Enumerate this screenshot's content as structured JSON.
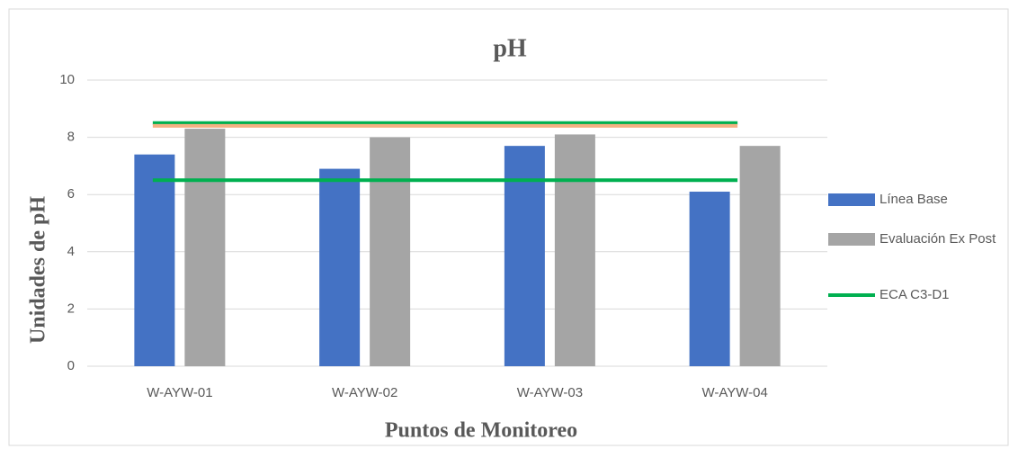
{
  "chart_data": {
    "type": "bar",
    "title": "pH",
    "x_label": "Puntos de Monitoreo",
    "y_label": "Unidades de pH",
    "categories": [
      "W-AYW-01",
      "W-AYW-02",
      "W-AYW-03",
      "W-AYW-04"
    ],
    "series": [
      {
        "name": "Línea Base",
        "color": "#4472c4",
        "kind": "bar",
        "values": [
          7.4,
          6.9,
          7.7,
          6.1
        ]
      },
      {
        "name": "Evaluación Ex Post",
        "color": "#a5a5a5",
        "kind": "bar",
        "values": [
          8.3,
          8.0,
          8.1,
          7.7
        ]
      },
      {
        "name": "ECA C3-D1",
        "color": "#00b050",
        "kind": "line",
        "values": [
          8.5,
          8.5,
          8.5,
          8.5
        ]
      },
      {
        "color": "#00b050",
        "kind": "line",
        "values": [
          6.5,
          6.5,
          6.5,
          6.5
        ]
      },
      {
        "color": "#f4b183",
        "kind": "line",
        "values": [
          8.4,
          8.4,
          8.4,
          8.4
        ]
      }
    ],
    "ylim": [
      0,
      10
    ],
    "yticks": [
      0,
      2,
      4,
      6,
      8,
      10
    ],
    "grid": true,
    "legend": "right"
  }
}
